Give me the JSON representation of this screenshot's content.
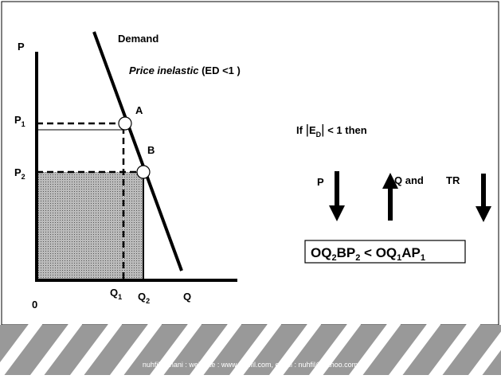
{
  "graph": {
    "p_axis": "P",
    "demand": "Demand",
    "elasticity_italic": "Price inelastic",
    "elasticity_rest": "(ED <1  )",
    "point_a": "A",
    "point_b": "B",
    "p1": {
      "base": "P",
      "sub": "1"
    },
    "p2": {
      "base": "P",
      "sub": "2"
    },
    "origin": "0",
    "q1": {
      "base": "Q",
      "sub": "1"
    },
    "q2": {
      "base": "Q",
      "sub": "2"
    },
    "q_axis": "Q"
  },
  "condition": {
    "if": "If",
    "abs_open": "|",
    "e": "E",
    "e_sub": "D",
    "abs_close": "|",
    "rest": "< 1  then"
  },
  "arrows": {
    "p": "P",
    "q": "Q and",
    "tr": "TR"
  },
  "formula": [
    {
      "base": "OQ",
      "sub": "2"
    },
    {
      "base": "BP",
      "sub": "2"
    },
    {
      "base": " < OQ",
      "sub": "1"
    },
    {
      "base": "AP",
      "sub": "1"
    }
  ],
  "footer": "nuhfil hanani : web site : www.nuhfil.com, email : nuhfil@yahoo.com"
}
